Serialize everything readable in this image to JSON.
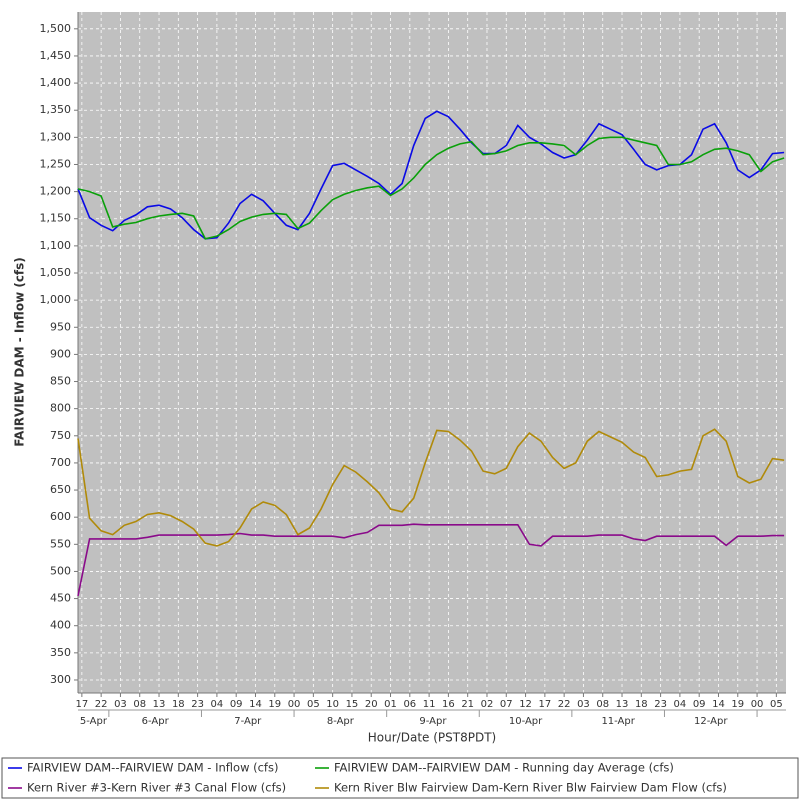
{
  "chart_data": {
    "type": "line",
    "xlabel": "Hour/Date (PST8PDT)",
    "ylabel": "FAIRVIEW DAM - Inflow (cfs)",
    "x": [
      16,
      19,
      22,
      25,
      28,
      31,
      34,
      37,
      40,
      43,
      46,
      49,
      52,
      55,
      58,
      61,
      64,
      67,
      70,
      73,
      76,
      79,
      82,
      85,
      88,
      91,
      94,
      97,
      100,
      103,
      106,
      109,
      112,
      115,
      118,
      121,
      124,
      127,
      130,
      133,
      136,
      139,
      142,
      145,
      148,
      151,
      154,
      157,
      160,
      163,
      166,
      169,
      172,
      175,
      178,
      181,
      184,
      187,
      190,
      193,
      196,
      199
    ],
    "series": [
      {
        "name": "FAIRVIEW DAM--FAIRVIEW DAM - Inflow  (cfs)",
        "color": "#0a0ae6",
        "values": [
          1205,
          1152,
          1138,
          1128,
          1147,
          1157,
          1172,
          1175,
          1168,
          1152,
          1130,
          1113,
          1115,
          1142,
          1178,
          1195,
          1183,
          1160,
          1138,
          1130,
          1160,
          1205,
          1248,
          1252,
          1240,
          1228,
          1215,
          1195,
          1215,
          1285,
          1335,
          1348,
          1338,
          1315,
          1290,
          1270,
          1270,
          1285,
          1322,
          1300,
          1288,
          1272,
          1262,
          1268,
          1295,
          1325,
          1315,
          1305,
          1278,
          1250,
          1240,
          1248,
          1250,
          1268,
          1315,
          1325,
          1290,
          1240,
          1226,
          1240,
          1270,
          1272
        ]
      },
      {
        "name": "FAIRVIEW DAM--FAIRVIEW DAM - Running day Average  (cfs)",
        "color": "#0aa00a",
        "values": [
          1205,
          1200,
          1192,
          1135,
          1140,
          1143,
          1150,
          1155,
          1158,
          1160,
          1155,
          1113,
          1118,
          1130,
          1145,
          1153,
          1158,
          1160,
          1158,
          1132,
          1142,
          1165,
          1185,
          1195,
          1202,
          1207,
          1210,
          1193,
          1205,
          1225,
          1250,
          1268,
          1280,
          1288,
          1292,
          1268,
          1270,
          1275,
          1285,
          1290,
          1290,
          1288,
          1285,
          1268,
          1285,
          1298,
          1300,
          1300,
          1295,
          1290,
          1285,
          1250,
          1250,
          1255,
          1268,
          1278,
          1280,
          1275,
          1268,
          1237,
          1255,
          1262
        ]
      },
      {
        "name": "Kern River #3-Kern River #3 Canal Flow  (cfs)",
        "color": "#8a0a8a",
        "values": [
          455,
          560,
          560,
          560,
          560,
          560,
          563,
          567,
          567,
          567,
          567,
          567,
          567,
          568,
          570,
          567,
          567,
          565,
          565,
          565,
          565,
          565,
          565,
          562,
          568,
          572,
          585,
          585,
          585,
          587,
          586,
          586,
          586,
          586,
          586,
          586,
          586,
          586,
          586,
          550,
          547,
          565,
          565,
          565,
          565,
          567,
          567,
          567,
          560,
          557,
          565,
          565,
          565,
          565,
          565,
          565,
          548,
          565,
          565,
          565,
          566,
          566
        ]
      },
      {
        "name": "Kern River Blw Fairview Dam-Kern River Blw Fairview Dam Flow  (cfs)",
        "color": "#b08a0a",
        "values": [
          745,
          598,
          575,
          568,
          585,
          592,
          605,
          608,
          603,
          592,
          578,
          552,
          547,
          555,
          580,
          615,
          628,
          622,
          605,
          568,
          580,
          615,
          660,
          695,
          683,
          665,
          645,
          615,
          610,
          635,
          700,
          760,
          758,
          742,
          722,
          685,
          680,
          690,
          730,
          755,
          740,
          710,
          690,
          700,
          740,
          758,
          748,
          738,
          720,
          710,
          675,
          678,
          685,
          688,
          750,
          762,
          740,
          675,
          663,
          670,
          708,
          705
        ]
      }
    ],
    "xlim": [
      16,
      199.5
    ],
    "xticks": [
      17,
      22,
      {
        "value": 27,
        "label": "03"
      },
      {
        "value": 32,
        "label": "08"
      },
      {
        "value": 37,
        "label": "13"
      },
      {
        "value": 42,
        "label": "18"
      },
      {
        "value": 47,
        "label": "23"
      },
      {
        "value": 52,
        "label": "04"
      },
      {
        "value": 57,
        "label": "09"
      },
      {
        "value": 62,
        "label": "14"
      },
      {
        "value": 67,
        "label": "19"
      },
      {
        "value": 72,
        "label": "00"
      },
      {
        "value": 77,
        "label": "05"
      },
      {
        "value": 82,
        "label": "10"
      },
      {
        "value": 87,
        "label": "15"
      },
      {
        "value": 92,
        "label": "20"
      },
      {
        "value": 97,
        "label": "01"
      },
      {
        "value": 102,
        "label": "06"
      },
      {
        "value": 107,
        "label": "11"
      },
      {
        "value": 112,
        "label": "16"
      },
      {
        "value": 117,
        "label": "21"
      },
      {
        "value": 122,
        "label": "02"
      },
      {
        "value": 127,
        "label": "07"
      },
      {
        "value": 132,
        "label": "12"
      },
      {
        "value": 137,
        "label": "17"
      },
      {
        "value": 142,
        "label": "22"
      },
      {
        "value": 147,
        "label": "03"
      },
      {
        "value": 152,
        "label": "08"
      },
      {
        "value": 157,
        "label": "13"
      },
      {
        "value": 162,
        "label": "18"
      },
      {
        "value": 167,
        "label": "23"
      },
      {
        "value": 172,
        "label": "04"
      },
      {
        "value": 177,
        "label": "09"
      },
      {
        "value": 182,
        "label": "14"
      },
      {
        "value": 187,
        "label": "19"
      },
      {
        "value": 192,
        "label": "00"
      },
      {
        "value": 197,
        "label": "05"
      }
    ],
    "xgroups": [
      {
        "label": "5-Apr",
        "start": 0,
        "end": 24
      },
      {
        "label": "6-Apr",
        "start": 24,
        "end": 48
      },
      {
        "label": "7-Apr",
        "start": 48,
        "end": 72
      },
      {
        "label": "8-Apr",
        "start": 72,
        "end": 96
      },
      {
        "label": "9-Apr",
        "start": 96,
        "end": 120
      },
      {
        "label": "10-Apr",
        "start": 120,
        "end": 144
      },
      {
        "label": "11-Apr",
        "start": 144,
        "end": 168
      },
      {
        "label": "12-Apr",
        "start": 168,
        "end": 192
      }
    ],
    "ylim": [
      276,
      1531
    ],
    "yticks": [
      300,
      350,
      400,
      450,
      500,
      550,
      600,
      650,
      700,
      750,
      800,
      850,
      900,
      950,
      {
        "value": 1000,
        "label": "1,000"
      },
      {
        "value": 1050,
        "label": "1,050"
      },
      {
        "value": 1100,
        "label": "1,100"
      },
      {
        "value": 1150,
        "label": "1,150"
      },
      {
        "value": 1200,
        "label": "1,200"
      },
      {
        "value": 1250,
        "label": "1,250"
      },
      {
        "value": 1300,
        "label": "1,300"
      },
      {
        "value": 1350,
        "label": "1,350"
      },
      {
        "value": 1400,
        "label": "1,400"
      },
      {
        "value": 1450,
        "label": "1,450"
      },
      {
        "value": 1500,
        "label": "1,500"
      }
    ],
    "grid": true,
    "legend": "bottom"
  }
}
